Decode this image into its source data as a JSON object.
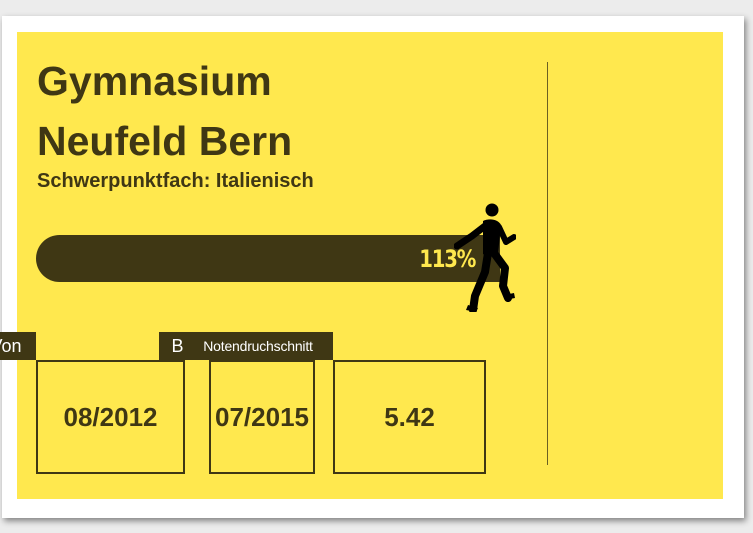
{
  "school": {
    "name_line1": "Gymnasium",
    "name_line2": "Neufeld Bern",
    "focus": "Schwerpunktfach: Italienisch"
  },
  "progress": {
    "label": "113%",
    "fill_fraction": 0.99
  },
  "stats": {
    "from": {
      "label": "Von",
      "value": "08/2012"
    },
    "to": {
      "label": "Bis",
      "value": "07/2015"
    },
    "grade": {
      "label": "Notendruchschnitt",
      "value": "5.42"
    }
  },
  "colors": {
    "background": "#ffe84e",
    "dark": "#3f3714",
    "tag_text": "#ffffff"
  },
  "icons": {
    "runner": "running-man-icon"
  }
}
